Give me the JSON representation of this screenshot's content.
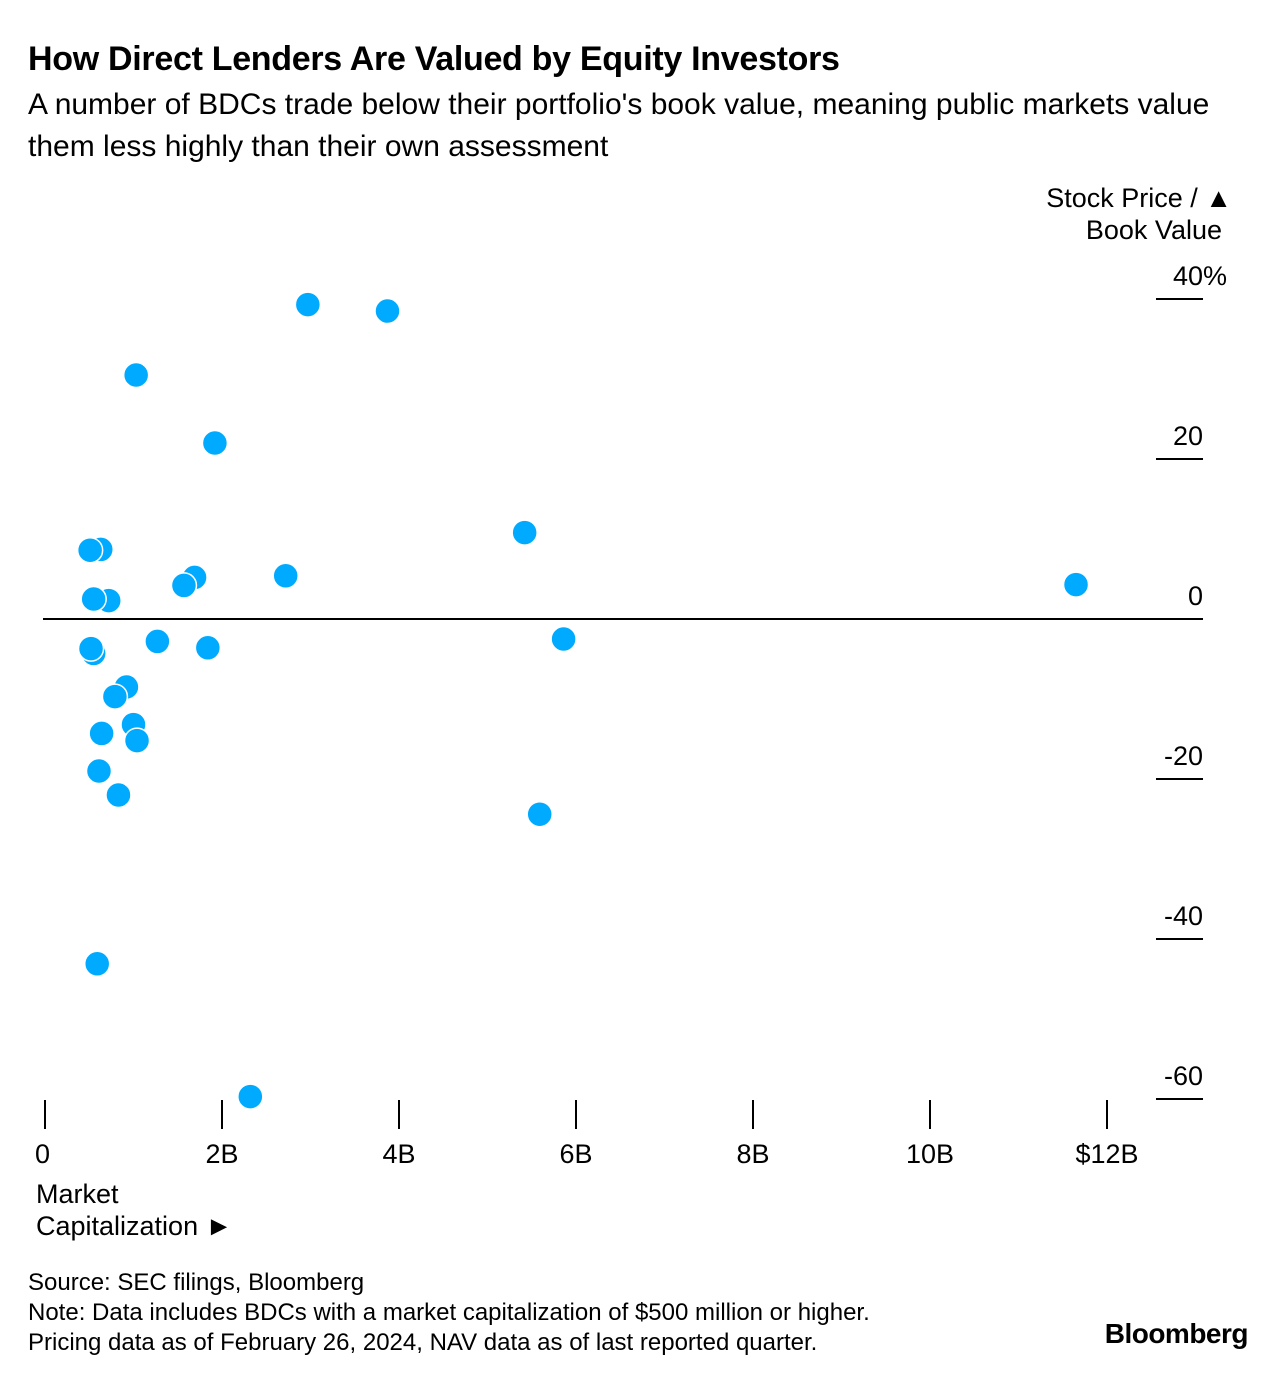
{
  "title": "How Direct Lenders Are Valued by Equity Investors",
  "subtitle": "A number of BDCs trade below their portfolio's book value, meaning public markets value them less highly than their own assessment",
  "y_axis_title": {
    "line1": "Stock Price / ▲",
    "line2": "Book Value"
  },
  "x_axis_title": {
    "line1": "Market",
    "line2": "Capitalization ►"
  },
  "footer": {
    "source": "Source: SEC filings, Bloomberg",
    "note": "Note: Data includes BDCs with a market capitalization of $500 million or higher.",
    "pricing": "Pricing data as of February 26, 2024, NAV data as of last reported quarter."
  },
  "brand": "Bloomberg",
  "colors": {
    "point": "#00aaff",
    "axis": "#000000",
    "background": "#ffffff"
  },
  "chart_data": {
    "type": "scatter",
    "title": "How Direct Lenders Are Valued by Equity Investors",
    "xlabel": "Market Capitalization",
    "ylabel": "Stock Price / Book Value",
    "xlim": [
      0,
      12.5
    ],
    "ylim": [
      -60,
      40
    ],
    "x_ticks": [
      {
        "value": 0,
        "label": "0"
      },
      {
        "value": 2,
        "label": "2B"
      },
      {
        "value": 4,
        "label": "4B"
      },
      {
        "value": 6,
        "label": "6B"
      },
      {
        "value": 8,
        "label": "8B"
      },
      {
        "value": 10,
        "label": "10B"
      },
      {
        "value": 12,
        "label": "$12B"
      }
    ],
    "y_ticks": [
      {
        "value": 40,
        "label": "40%"
      },
      {
        "value": 20,
        "label": "20"
      },
      {
        "value": 0,
        "label": "0"
      },
      {
        "value": -20,
        "label": "-20"
      },
      {
        "value": -40,
        "label": "-40"
      },
      {
        "value": -60,
        "label": "-60"
      }
    ],
    "grid": false,
    "series": [
      {
        "name": "BDCs",
        "points": [
          {
            "x": 2.97,
            "y": 39.3
          },
          {
            "x": 3.87,
            "y": 38.5
          },
          {
            "x": 1.03,
            "y": 30.5
          },
          {
            "x": 1.92,
            "y": 22.0
          },
          {
            "x": 5.42,
            "y": 10.8
          },
          {
            "x": 0.63,
            "y": 8.7
          },
          {
            "x": 0.51,
            "y": 8.6
          },
          {
            "x": 1.69,
            "y": 5.2
          },
          {
            "x": 1.57,
            "y": 4.2
          },
          {
            "x": 2.72,
            "y": 5.4
          },
          {
            "x": 11.65,
            "y": 4.3
          },
          {
            "x": 0.72,
            "y": 2.3
          },
          {
            "x": 0.55,
            "y": 2.5
          },
          {
            "x": 1.27,
            "y": -2.8
          },
          {
            "x": 1.84,
            "y": -3.6
          },
          {
            "x": 5.86,
            "y": -2.5
          },
          {
            "x": 0.55,
            "y": -4.3
          },
          {
            "x": 0.52,
            "y": -3.7
          },
          {
            "x": 0.92,
            "y": -8.5
          },
          {
            "x": 0.79,
            "y": -9.7
          },
          {
            "x": 1.0,
            "y": -13.2
          },
          {
            "x": 1.04,
            "y": -15.2
          },
          {
            "x": 0.64,
            "y": -14.3
          },
          {
            "x": 0.61,
            "y": -19.0
          },
          {
            "x": 0.83,
            "y": -22.0
          },
          {
            "x": 5.59,
            "y": -24.4
          },
          {
            "x": 0.59,
            "y": -43.1
          },
          {
            "x": 2.32,
            "y": -59.7
          }
        ]
      }
    ]
  }
}
